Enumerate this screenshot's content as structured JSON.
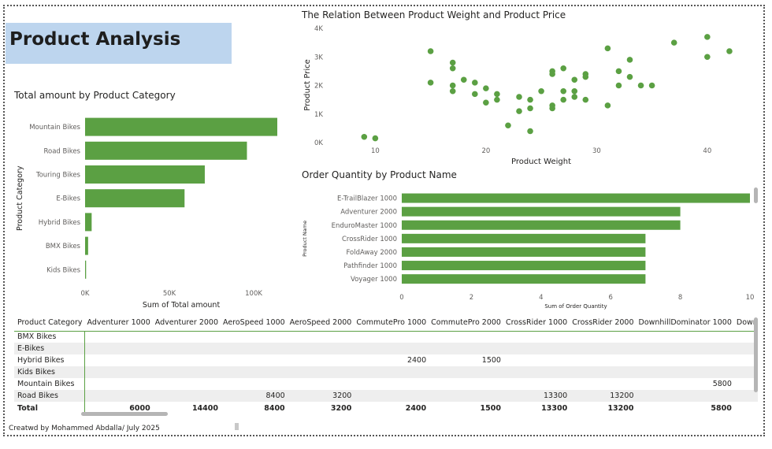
{
  "page_title": "Product Analysis",
  "footer": "Creatwd by Mohammed Abdalla/ July 2025",
  "colors": {
    "bar": "#5ba043",
    "title_bg": "#bdd5ee"
  },
  "chart_data": [
    {
      "id": "category",
      "type": "bar",
      "orientation": "horizontal",
      "title": "Total amount by Product Category",
      "xlabel": "Sum of Total amount",
      "ylabel": "Product Category",
      "categories": [
        "Mountain Bikes",
        "Road Bikes",
        "Touring Bikes",
        "E-Bikes",
        "Hybrid Bikes",
        "BMX Bikes",
        "Kids Bikes"
      ],
      "values": [
        114000,
        96000,
        71000,
        59000,
        3900,
        1800,
        600
      ],
      "xlim": [
        0,
        114000
      ],
      "xticks": [
        0,
        50000,
        100000
      ],
      "xtick_labels": [
        "0K",
        "50K",
        "100K"
      ]
    },
    {
      "id": "scatter",
      "type": "scatter",
      "title": "The Relation Between Product Weight and Product Price",
      "xlabel": "Product Weight",
      "ylabel": "Product Price",
      "xlim": [
        6.7,
        43
      ],
      "ylim": [
        0,
        4000
      ],
      "xticks": [
        10,
        20,
        30,
        40
      ],
      "xtick_labels": [
        "10",
        "20",
        "30",
        "40"
      ],
      "yticks": [
        0,
        1000,
        2000,
        3000,
        4000
      ],
      "ytick_labels": [
        "0K",
        "1K",
        "2K",
        "3K",
        "4K"
      ],
      "points": [
        [
          9,
          200
        ],
        [
          10,
          150
        ],
        [
          15,
          3200
        ],
        [
          15,
          2100
        ],
        [
          17,
          2800
        ],
        [
          17,
          2600
        ],
        [
          17,
          2000
        ],
        [
          17,
          1800
        ],
        [
          18,
          2200
        ],
        [
          19,
          2100
        ],
        [
          19,
          1700
        ],
        [
          20,
          1900
        ],
        [
          20,
          1400
        ],
        [
          21,
          1700
        ],
        [
          21,
          1500
        ],
        [
          22,
          600
        ],
        [
          23,
          1600
        ],
        [
          23,
          1100
        ],
        [
          24,
          1500
        ],
        [
          24,
          1200
        ],
        [
          24,
          400
        ],
        [
          25,
          1800
        ],
        [
          26,
          2500
        ],
        [
          26,
          2400
        ],
        [
          26,
          1300
        ],
        [
          26,
          1200
        ],
        [
          27,
          2600
        ],
        [
          27,
          1800
        ],
        [
          27,
          1500
        ],
        [
          28,
          2200
        ],
        [
          28,
          1800
        ],
        [
          28,
          1600
        ],
        [
          29,
          2400
        ],
        [
          29,
          2300
        ],
        [
          29,
          1500
        ],
        [
          31,
          3300
        ],
        [
          31,
          1300
        ],
        [
          32,
          2500
        ],
        [
          32,
          2000
        ],
        [
          33,
          2900
        ],
        [
          33,
          2300
        ],
        [
          34,
          2000
        ],
        [
          35,
          2000
        ],
        [
          37,
          3500
        ],
        [
          40,
          3700
        ],
        [
          40,
          3000
        ],
        [
          42,
          3200
        ]
      ]
    },
    {
      "id": "orders",
      "type": "bar",
      "orientation": "horizontal",
      "title": "Order Quantity by Product Name",
      "xlabel": "Sum of Order Quantity",
      "ylabel": "Product Name",
      "categories": [
        "E-TrailBlazer 1000",
        "Adventurer 2000",
        "EnduroMaster 1000",
        "CrossRider 1000",
        "FoldAway 2000",
        "Pathfinder 1000",
        "Voyager 1000"
      ],
      "values": [
        10,
        8,
        8,
        7,
        7,
        7,
        7
      ],
      "xlim": [
        0,
        10
      ],
      "xticks": [
        0,
        2,
        4,
        6,
        8,
        10
      ],
      "xtick_labels": [
        "0",
        "2",
        "4",
        "6",
        "8",
        "10"
      ]
    }
  ],
  "matrix": {
    "row_header": "Product Category",
    "columns": [
      "Adventurer 1000",
      "Adventurer 2000",
      "AeroSpeed 1000",
      "AeroSpeed 2000",
      "CommutePro 1000",
      "CommutePro 2000",
      "CrossRider 1000",
      "CrossRider 2000",
      "DownhillDominator 1000",
      "DownhillDomi"
    ],
    "rows": [
      {
        "label": "BMX Bikes",
        "cells": [
          "",
          "",
          "",
          "",
          "",
          "",
          "",
          "",
          "",
          ""
        ]
      },
      {
        "label": "E-Bikes",
        "cells": [
          "",
          "",
          "",
          "",
          "",
          "",
          "",
          "",
          "",
          ""
        ]
      },
      {
        "label": "Hybrid Bikes",
        "cells": [
          "",
          "",
          "",
          "",
          "2400",
          "1500",
          "",
          "",
          "",
          ""
        ]
      },
      {
        "label": "Kids Bikes",
        "cells": [
          "",
          "",
          "",
          "",
          "",
          "",
          "",
          "",
          "",
          ""
        ]
      },
      {
        "label": "Mountain Bikes",
        "cells": [
          "",
          "",
          "",
          "",
          "",
          "",
          "",
          "",
          "5800",
          ""
        ]
      },
      {
        "label": "Road Bikes",
        "cells": [
          "",
          "",
          "8400",
          "3200",
          "",
          "",
          "13300",
          "13200",
          "",
          ""
        ]
      }
    ],
    "total_label": "Total",
    "totals": [
      "6000",
      "14400",
      "8400",
      "3200",
      "2400",
      "1500",
      "13300",
      "13200",
      "5800",
      ""
    ]
  }
}
